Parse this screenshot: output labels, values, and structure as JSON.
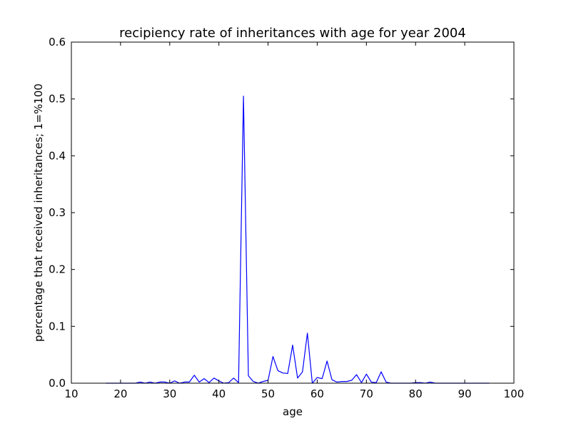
{
  "chart_data": {
    "type": "line",
    "title": "recipiency rate of inheritances with age for year 2004",
    "xlabel": "age",
    "ylabel": "percentage that received inheritances; 1=%100",
    "xlim": [
      10,
      100
    ],
    "ylim": [
      0,
      0.6
    ],
    "xticks": [
      10,
      20,
      30,
      40,
      50,
      60,
      70,
      80,
      90,
      100
    ],
    "yticks": [
      0.0,
      0.1,
      0.2,
      0.3,
      0.4,
      0.5,
      0.6
    ],
    "xtick_labels": [
      "10",
      "20",
      "30",
      "40",
      "50",
      "60",
      "70",
      "80",
      "90",
      "100"
    ],
    "ytick_labels": [
      "0.0",
      "0.1",
      "0.2",
      "0.3",
      "0.4",
      "0.5",
      "0.6"
    ],
    "grid": false,
    "line_color": "#0000ff",
    "series": [
      {
        "x": [
          17,
          18,
          19,
          20,
          21,
          22,
          23,
          24,
          25,
          26,
          27,
          28,
          29,
          30,
          31,
          32,
          33,
          34,
          35,
          36,
          37,
          38,
          39,
          40,
          41,
          42,
          43,
          44,
          45,
          46,
          47,
          48,
          49,
          50,
          51,
          52,
          53,
          54,
          55,
          56,
          57,
          58,
          59,
          60,
          61,
          62,
          63,
          64,
          65,
          66,
          67,
          68,
          69,
          70,
          71,
          72,
          73,
          74,
          75,
          76,
          77,
          78,
          79,
          80,
          81,
          82,
          83,
          84,
          85,
          86,
          87,
          88,
          89,
          90,
          91,
          92,
          93,
          94,
          95
        ],
        "y": [
          0,
          0,
          0,
          0,
          0,
          0,
          0,
          0.002,
          0,
          0.002,
          0,
          0.002,
          0.002,
          0,
          0.004,
          0,
          0.002,
          0.002,
          0.014,
          0.002,
          0.008,
          0.001,
          0.009,
          0.004,
          0,
          0.001,
          0.009,
          0.001,
          0.505,
          0.013,
          0.003,
          0,
          0.003,
          0.005,
          0.047,
          0.022,
          0.018,
          0.017,
          0.067,
          0.009,
          0.02,
          0.088,
          0,
          0.01,
          0.008,
          0.039,
          0.006,
          0.002,
          0.003,
          0.003,
          0.005,
          0.015,
          0.001,
          0.016,
          0.002,
          0.001,
          0.02,
          0.002,
          0,
          0,
          0,
          0,
          0,
          0.001,
          0.001,
          0,
          0.002,
          0,
          0,
          0,
          0,
          0,
          0,
          0,
          0,
          0,
          0,
          0,
          0
        ]
      }
    ]
  }
}
